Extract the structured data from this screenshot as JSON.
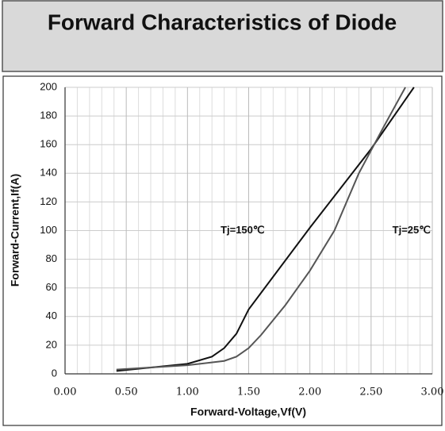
{
  "chart_data": {
    "type": "line",
    "title": "Forward Characteristics of Diode",
    "x_label": "Forward-Voltage,Vf(V)",
    "y_label": "Forward-Current,If(A)",
    "series": [
      {
        "name": "Tj=150℃",
        "color": "#111111",
        "x": [
          0.42,
          1.0,
          1.2,
          1.3,
          1.4,
          1.5,
          2.0,
          2.5,
          2.85
        ],
        "values": [
          2,
          7,
          12,
          18,
          28,
          45,
          102,
          157,
          200
        ],
        "label_at": [
          1.45,
          100
        ]
      },
      {
        "name": "Tj=25℃",
        "color": "#555555",
        "x": [
          0.42,
          1.0,
          1.3,
          1.4,
          1.5,
          1.6,
          1.8,
          2.0,
          2.2,
          2.4,
          2.6,
          2.78
        ],
        "values": [
          3,
          6,
          9,
          12,
          18,
          27,
          48,
          72,
          100,
          140,
          172,
          200
        ],
        "label_at": [
          2.83,
          100
        ]
      }
    ],
    "xlim": [
      0,
      3
    ],
    "ylim": [
      0,
      200
    ],
    "xticks": [
      {
        "value": 0,
        "label": "0.00"
      },
      {
        "value": 0.5,
        "label": "0.50"
      },
      {
        "value": 1,
        "label": "1.00"
      },
      {
        "value": 1.5,
        "label": "1.50"
      },
      {
        "value": 2,
        "label": "2.00"
      },
      {
        "value": 2.5,
        "label": "2.50"
      },
      {
        "value": 3,
        "label": "3.00"
      }
    ],
    "minor_xticks": [
      0.1,
      0.2,
      0.3,
      0.4,
      0.6,
      0.7,
      0.8,
      0.9,
      1.1,
      1.2,
      1.3,
      1.4,
      1.6,
      1.7,
      1.8,
      1.9,
      2.1,
      2.2,
      2.3,
      2.4,
      2.6,
      2.7,
      2.8,
      2.9
    ],
    "yticks": [
      0,
      20,
      40,
      60,
      80,
      100,
      120,
      140,
      160,
      180,
      200
    ],
    "grid": true
  }
}
